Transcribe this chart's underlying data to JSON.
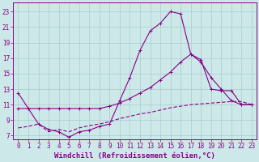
{
  "line1_x": [
    0,
    1,
    2,
    3,
    4,
    5,
    6,
    7,
    8,
    9,
    10,
    11,
    12,
    13,
    14,
    15,
    16,
    17,
    18,
    19,
    20,
    21,
    22,
    23
  ],
  "line1_y": [
    12.5,
    10.5,
    8.5,
    7.8,
    7.5,
    6.8,
    7.5,
    7.7,
    8.2,
    8.5,
    11.5,
    14.5,
    18.0,
    20.5,
    21.5,
    23.0,
    22.7,
    17.5,
    16.8,
    13.0,
    12.8,
    12.8,
    11.0,
    11.0
  ],
  "line2_x": [
    0,
    1,
    2,
    3,
    4,
    5,
    6,
    7,
    8,
    9,
    10,
    11,
    12,
    13,
    14,
    15,
    16,
    17,
    18,
    19,
    20,
    21,
    22,
    23
  ],
  "line2_y": [
    10.5,
    10.5,
    10.5,
    10.5,
    10.5,
    10.5,
    10.5,
    10.5,
    10.5,
    10.8,
    11.2,
    11.8,
    12.5,
    13.2,
    14.2,
    15.2,
    16.5,
    17.5,
    16.5,
    14.5,
    13.0,
    11.5,
    11.0,
    11.0
  ],
  "line3_x": [
    0,
    1,
    2,
    3,
    4,
    5,
    6,
    7,
    8,
    9,
    10,
    11,
    12,
    13,
    14,
    15,
    16,
    17,
    18,
    19,
    20,
    21,
    22,
    23
  ],
  "line3_y": [
    8.0,
    8.2,
    8.5,
    7.5,
    7.8,
    7.5,
    8.0,
    8.3,
    8.5,
    8.8,
    9.2,
    9.5,
    9.8,
    10.0,
    10.3,
    10.6,
    10.8,
    11.0,
    11.1,
    11.2,
    11.3,
    11.4,
    11.4,
    11.0
  ],
  "line_color": "#880088",
  "bg_color": "#cce8e8",
  "grid_color": "#aacccc",
  "xlabel": "Windchill (Refroidissement éolien,°C)",
  "xlabel_fontsize": 6.5,
  "xtick_labels": [
    "0",
    "1",
    "2",
    "3",
    "4",
    "5",
    "6",
    "7",
    "8",
    "9",
    "10",
    "11",
    "12",
    "13",
    "14",
    "15",
    "16",
    "17",
    "18",
    "19",
    "20",
    "21",
    "22",
    "23"
  ],
  "ytick_vals": [
    7,
    9,
    11,
    13,
    15,
    17,
    19,
    21,
    23
  ],
  "ytick_labels": [
    "7",
    "9",
    "11",
    "13",
    "15",
    "17",
    "19",
    "21",
    "23"
  ],
  "ylim": [
    6.5,
    24.2
  ],
  "xlim": [
    -0.5,
    23.5
  ],
  "tick_fontsize": 5.5
}
